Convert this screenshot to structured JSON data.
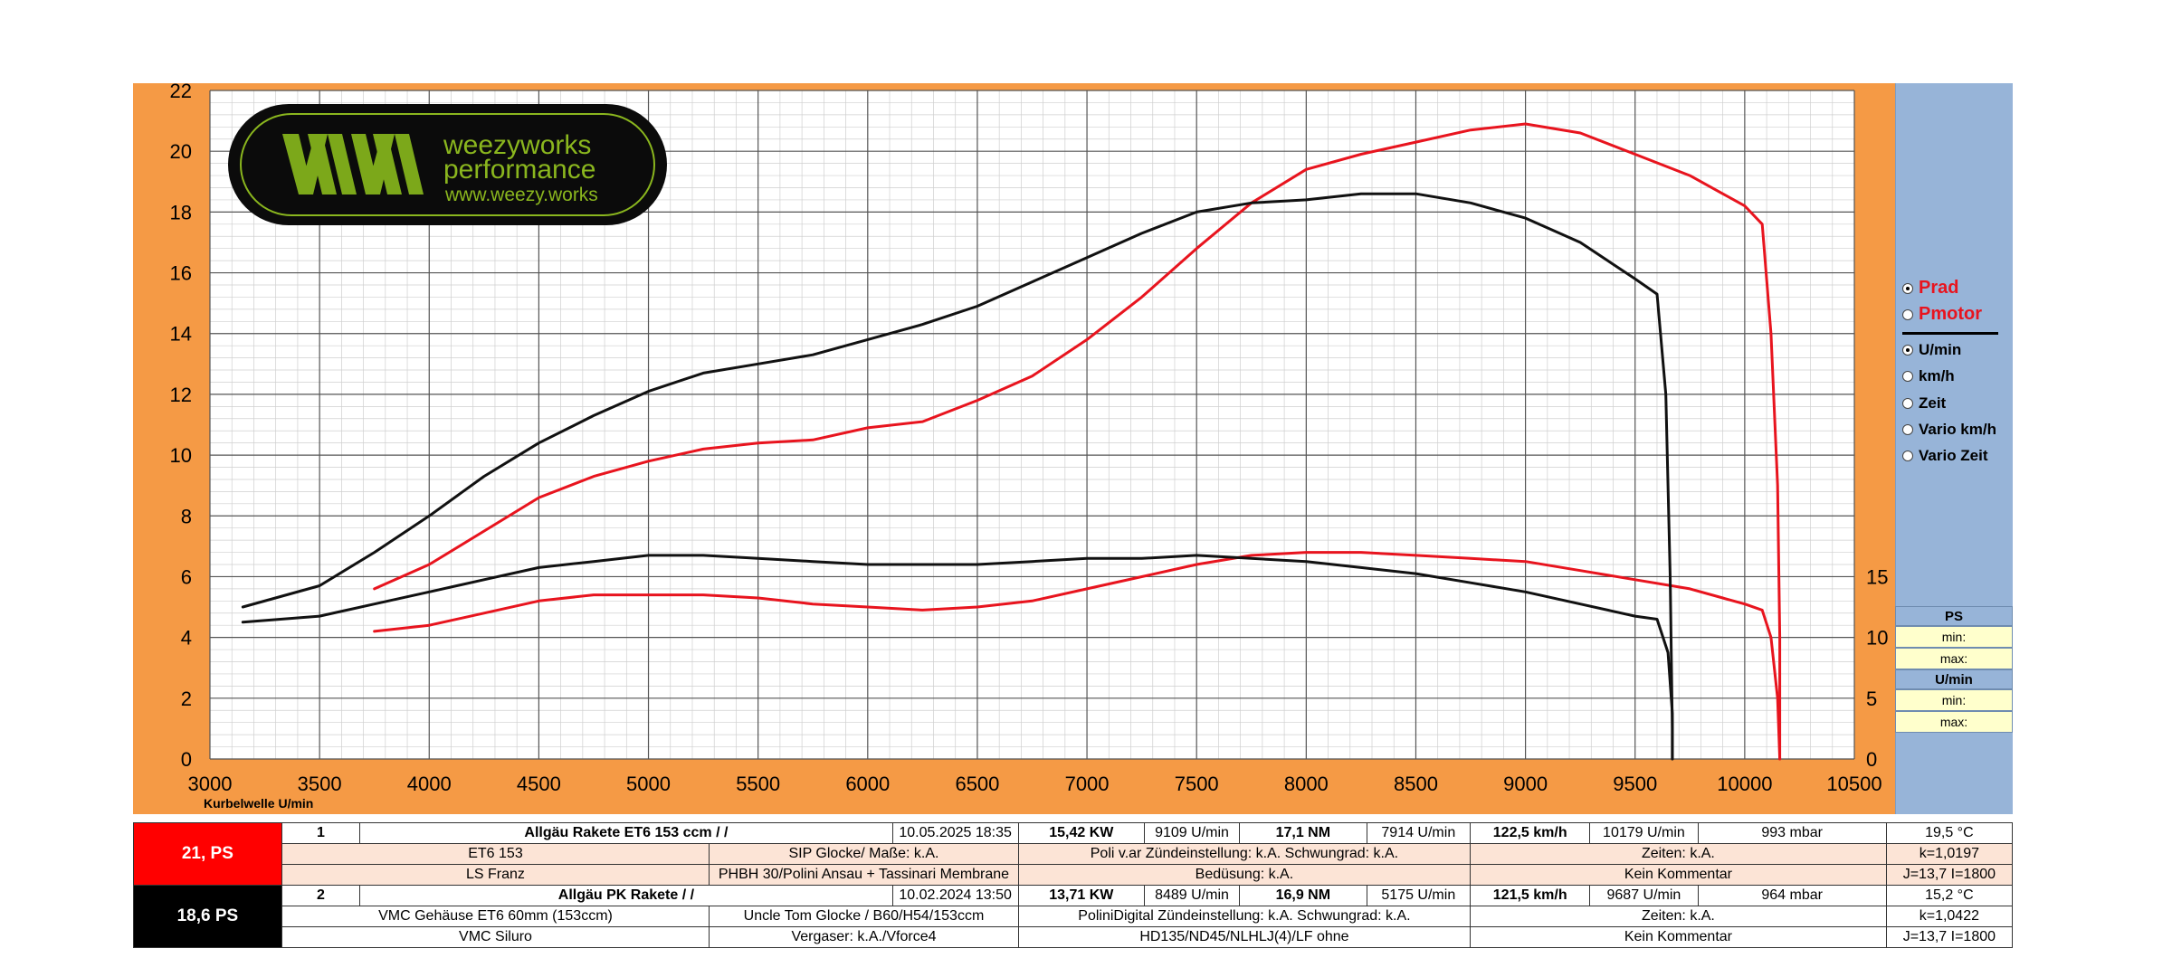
{
  "logo": {
    "name_line1": "weezyworks",
    "name_line2": "performance",
    "url": "www.weezy.works"
  },
  "legend_panel": {
    "options": [
      {
        "label": "Prad",
        "selected": true,
        "color": "#e8141e"
      },
      {
        "label": "Pmotor",
        "selected": false,
        "color": "#e8141e"
      },
      {
        "label": "U/min",
        "selected": true
      },
      {
        "label": "km/h",
        "selected": false
      },
      {
        "label": "Zeit",
        "selected": false
      },
      {
        "label": "Vario km/h",
        "selected": false
      },
      {
        "label": "Vario Zeit",
        "selected": false
      }
    ],
    "ps_header": "PS",
    "umin_header": "U/min",
    "min_label": "min:",
    "max_label": "max:"
  },
  "chart_data": {
    "type": "line",
    "xlabel": "Kurbelwelle U/min",
    "xlim": [
      3000,
      10500
    ],
    "x_ticks": [
      "3000",
      "3500",
      "4000",
      "4500",
      "5000",
      "5500",
      "6000",
      "6500",
      "7000",
      "7500",
      "8000",
      "8500",
      "9000",
      "9500",
      "10000",
      "10500"
    ],
    "ylim": [
      0,
      22
    ],
    "y_ticks": [
      "0",
      "2",
      "4",
      "6",
      "8",
      "10",
      "12",
      "14",
      "16",
      "18",
      "20",
      "22"
    ],
    "y2_ticks": [
      "0",
      "5",
      "10",
      "15"
    ],
    "grid": true,
    "colors": {
      "run1": "#e8141e",
      "run2": "#111111"
    },
    "series": [
      {
        "run": 1,
        "color": "#e8141e",
        "kind": "power",
        "x": [
          3750,
          4000,
          4250,
          4500,
          4750,
          5000,
          5250,
          5500,
          5750,
          6000,
          6250,
          6500,
          6750,
          7000,
          7250,
          7500,
          7750,
          8000,
          8250,
          8500,
          8750,
          9000,
          9250,
          9500,
          9750,
          9900,
          10000,
          10080,
          10120,
          10150,
          10160,
          10160
        ],
        "y": [
          5.6,
          6.4,
          7.5,
          8.6,
          9.3,
          9.8,
          10.2,
          10.4,
          10.5,
          10.9,
          11.1,
          11.8,
          12.6,
          13.8,
          15.2,
          16.8,
          18.3,
          19.4,
          19.9,
          20.3,
          20.7,
          20.9,
          20.6,
          19.9,
          19.2,
          18.6,
          18.2,
          17.6,
          14,
          9,
          4,
          0
        ]
      },
      {
        "run": 1,
        "color": "#e8141e",
        "kind": "torque",
        "x": [
          3750,
          4000,
          4250,
          4500,
          4750,
          5000,
          5250,
          5500,
          5750,
          6000,
          6250,
          6500,
          6750,
          7000,
          7250,
          7500,
          7750,
          8000,
          8250,
          8500,
          8750,
          9000,
          9250,
          9500,
          9750,
          9900,
          10000,
          10080,
          10120,
          10150,
          10160
        ],
        "y": [
          4.2,
          4.4,
          4.8,
          5.2,
          5.4,
          5.4,
          5.4,
          5.3,
          5.1,
          5.0,
          4.9,
          5.0,
          5.2,
          5.6,
          6.0,
          6.4,
          6.7,
          6.8,
          6.8,
          6.7,
          6.6,
          6.5,
          6.2,
          5.9,
          5.6,
          5.3,
          5.1,
          4.9,
          4.0,
          2.0,
          0.0
        ]
      },
      {
        "run": 2,
        "color": "#111111",
        "kind": "power",
        "x": [
          3150,
          3500,
          3750,
          4000,
          4250,
          4500,
          4750,
          5000,
          5250,
          5500,
          5750,
          6000,
          6250,
          6500,
          6750,
          7000,
          7250,
          7500,
          7750,
          8000,
          8250,
          8500,
          8750,
          9000,
          9250,
          9500,
          9600,
          9640,
          9660,
          9670,
          9670
        ],
        "y": [
          5.0,
          5.7,
          6.8,
          8.0,
          9.3,
          10.4,
          11.3,
          12.1,
          12.7,
          13.0,
          13.3,
          13.8,
          14.3,
          14.9,
          15.7,
          16.5,
          17.3,
          18.0,
          18.3,
          18.4,
          18.6,
          18.6,
          18.3,
          17.8,
          17.0,
          15.8,
          15.3,
          12,
          6,
          1,
          0
        ]
      },
      {
        "run": 2,
        "color": "#111111",
        "kind": "torque",
        "x": [
          3150,
          3500,
          3750,
          4000,
          4250,
          4500,
          4750,
          5000,
          5250,
          5500,
          5750,
          6000,
          6250,
          6500,
          6750,
          7000,
          7250,
          7500,
          7750,
          8000,
          8250,
          8500,
          8750,
          9000,
          9250,
          9500,
          9600,
          9650,
          9670,
          9670
        ],
        "y": [
          4.5,
          4.7,
          5.1,
          5.5,
          5.9,
          6.3,
          6.5,
          6.7,
          6.7,
          6.6,
          6.5,
          6.4,
          6.4,
          6.4,
          6.5,
          6.6,
          6.6,
          6.7,
          6.6,
          6.5,
          6.3,
          6.1,
          5.8,
          5.5,
          5.1,
          4.7,
          4.6,
          3.5,
          1.5,
          0
        ]
      }
    ]
  },
  "table": {
    "run1": {
      "ps": "21, PS",
      "num": "1",
      "name": "Allgäu Rakete ET6 153 ccm /  /",
      "date": "10.05.2025 18:35",
      "kw": "15,42  KW",
      "kw_rpm": "9109  U/min",
      "nm": "17,1  NM",
      "nm_rpm": "7914  U/min",
      "kmh": "122,5 km/h",
      "kmh_rpm": "10179  U/min",
      "mbar": "993  mbar",
      "temp": "19,5 °C",
      "r2c1": "ET6 153",
      "r2c2": "SIP Glocke/ Maße: k.A.",
      "r2c3": "Poli v.ar  Zündeinstellung: k.A. Schwungrad: k.A.",
      "r2c4": "Zeiten: k.A.",
      "r2c5": "k=1,0197",
      "r3c1": "LS Franz",
      "r3c2": "PHBH 30/Polini Ansau + Tassinari Membrane",
      "r3c3": "Bedüsung: k.A.",
      "r3c4": "Kein Kommentar",
      "r3c5": "J=13,7 I=1800"
    },
    "run2": {
      "ps": "18,6  PS",
      "num": "2",
      "name": "Allgäu PK Rakete  /  /",
      "date": "10.02.2024 13:50",
      "kw": "13,71  KW",
      "kw_rpm": "8489  U/min",
      "nm": "16,9  NM",
      "nm_rpm": "5175  U/min",
      "kmh": "121,5 km/h",
      "kmh_rpm": "9687  U/min",
      "mbar": "964  mbar",
      "temp": "15,2 °C",
      "r2c1": "VMC Gehäuse ET6 60mm (153ccm)",
      "r2c2": "Uncle Tom Glocke  / B60/H54/153ccm",
      "r2c3": "PoliniDigital   Zündeinstellung: k.A. Schwungrad: k.A.",
      "r2c4": "Zeiten: k.A.",
      "r2c5": "k=1,0422",
      "r3c1": "VMC Siluro",
      "r3c2": "Vergaser: k.A./Vforce4",
      "r3c3": "HD135/ND45/NLHLJ(4)/LF ohne",
      "r3c4": "Kein Kommentar",
      "r3c5": "J=13,7 I=1800"
    }
  }
}
